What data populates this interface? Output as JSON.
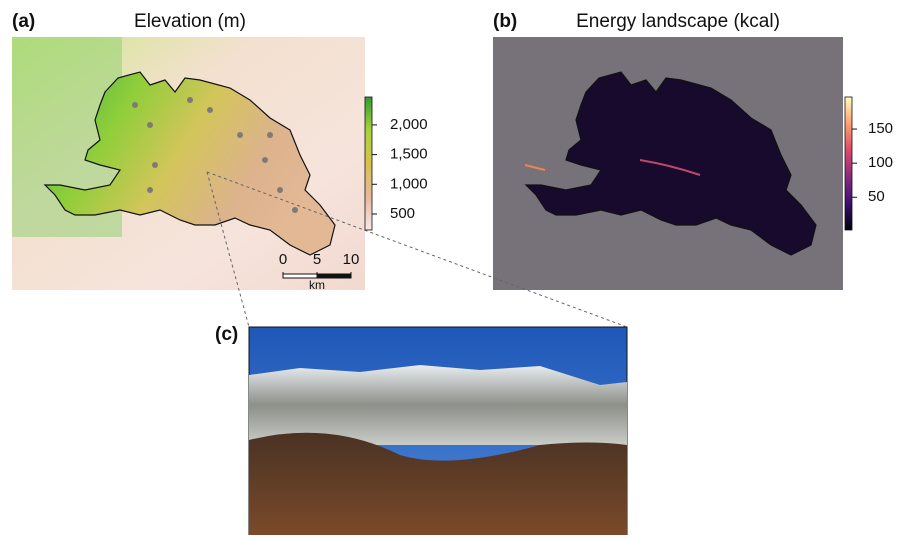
{
  "panels": [
    {
      "label": "(a)",
      "title": "Elevation (m)",
      "legend": {
        "range": [
          230,
          2470
        ],
        "colors": [
          "#f7e8e6",
          "#e8b89e",
          "#d8c24a",
          "#a6d43a",
          "#2e9e2a"
        ],
        "ticks": [
          {
            "value": 500,
            "label": "500"
          },
          {
            "value": 1000,
            "label": "1,000"
          },
          {
            "value": 1500,
            "label": "1,500"
          },
          {
            "value": 2000,
            "label": "2,000"
          }
        ]
      },
      "scalebar": {
        "ticks": [
          0,
          5,
          10
        ],
        "unit": "km"
      }
    },
    {
      "label": "(b)",
      "title": "Energy landscape (kcal)",
      "legend": {
        "range": [
          2,
          197
        ],
        "colors": [
          "#000004",
          "#3b0f70",
          "#8c2981",
          "#de4968",
          "#fe9f6d",
          "#fcfdbf"
        ],
        "ticks": [
          50,
          100,
          150
        ]
      }
    },
    {
      "label": "(c)"
    }
  ]
}
